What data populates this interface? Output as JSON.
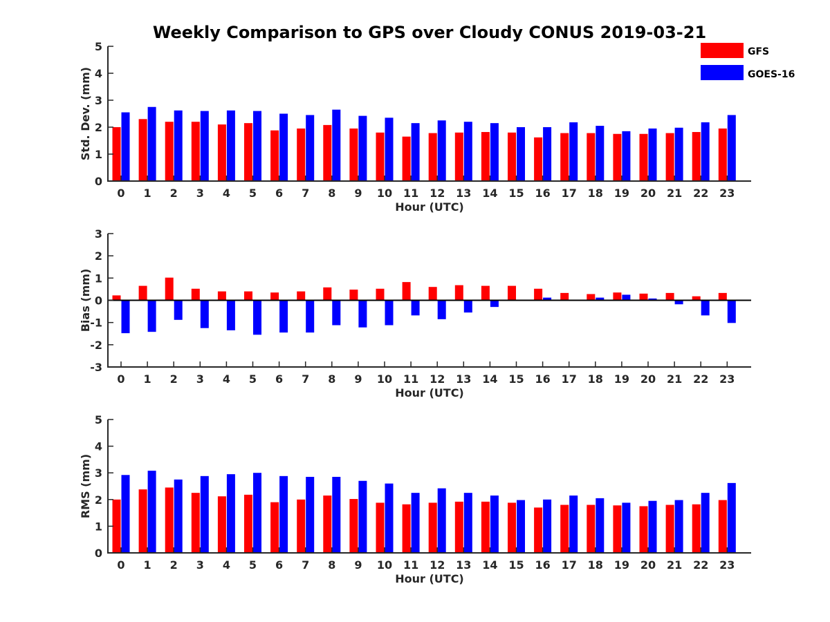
{
  "figure": {
    "title": "Weekly Comparison to GPS over Cloudy CONUS 2019-03-21"
  },
  "legend": {
    "position": "top-right",
    "entries": [
      {
        "name": "GFS",
        "color": "#ff0000"
      },
      {
        "name": "GOES-16",
        "color": "#0000ff"
      }
    ]
  },
  "chart_data": [
    {
      "type": "bar",
      "title": "Weekly Comparison to GPS over Cloudy CONUS 2019-03-21",
      "xlabel": "Hour (UTC)",
      "ylabel": "Std. Dev. (mm)",
      "ylim": [
        0,
        5
      ],
      "yticks": [
        0,
        1,
        2,
        3,
        4,
        5
      ],
      "grid": false,
      "categories": [
        "0",
        "1",
        "2",
        "3",
        "4",
        "5",
        "6",
        "7",
        "8",
        "9",
        "10",
        "11",
        "12",
        "13",
        "14",
        "15",
        "16",
        "17",
        "18",
        "19",
        "20",
        "21",
        "22",
        "23"
      ],
      "series": [
        {
          "name": "GFS",
          "color": "#ff0000",
          "values": [
            2.0,
            2.3,
            2.2,
            2.2,
            2.1,
            2.15,
            1.88,
            1.95,
            2.08,
            1.95,
            1.8,
            1.65,
            1.78,
            1.8,
            1.82,
            1.8,
            1.62,
            1.78,
            1.78,
            1.75,
            1.75,
            1.78,
            1.82,
            1.95
          ]
        },
        {
          "name": "GOES-16",
          "color": "#0000ff",
          "values": [
            2.55,
            2.75,
            2.62,
            2.6,
            2.62,
            2.6,
            2.5,
            2.45,
            2.65,
            2.42,
            2.35,
            2.15,
            2.25,
            2.2,
            2.15,
            2.0,
            2.0,
            2.18,
            2.05,
            1.85,
            1.95,
            1.98,
            2.18,
            2.45
          ]
        }
      ]
    },
    {
      "type": "bar",
      "xlabel": "Hour (UTC)",
      "ylabel": "Bias (mm)",
      "ylim": [
        -3,
        3
      ],
      "yticks": [
        -3,
        -2,
        -1,
        0,
        1,
        2,
        3
      ],
      "grid": false,
      "categories": [
        "0",
        "1",
        "2",
        "3",
        "4",
        "5",
        "6",
        "7",
        "8",
        "9",
        "10",
        "11",
        "12",
        "13",
        "14",
        "15",
        "16",
        "17",
        "18",
        "19",
        "20",
        "21",
        "22",
        "23"
      ],
      "series": [
        {
          "name": "GFS",
          "color": "#ff0000",
          "values": [
            0.22,
            0.65,
            1.02,
            0.52,
            0.4,
            0.4,
            0.35,
            0.4,
            0.58,
            0.48,
            0.52,
            0.82,
            0.6,
            0.68,
            0.65,
            0.65,
            0.52,
            0.33,
            0.28,
            0.35,
            0.3,
            0.33,
            0.18,
            0.33
          ]
        },
        {
          "name": "GOES-16",
          "color": "#0000ff",
          "values": [
            -1.48,
            -1.42,
            -0.88,
            -1.25,
            -1.35,
            -1.55,
            -1.45,
            -1.45,
            -1.12,
            -1.22,
            -1.12,
            -0.68,
            -0.85,
            -0.55,
            -0.3,
            0.03,
            0.12,
            0.0,
            0.12,
            0.25,
            0.08,
            -0.18,
            -0.68,
            -1.02
          ]
        }
      ]
    },
    {
      "type": "bar",
      "xlabel": "Hour (UTC)",
      "ylabel": "RMS (mm)",
      "ylim": [
        0,
        5
      ],
      "yticks": [
        0,
        1,
        2,
        3,
        4,
        5
      ],
      "grid": false,
      "categories": [
        "0",
        "1",
        "2",
        "3",
        "4",
        "5",
        "6",
        "7",
        "8",
        "9",
        "10",
        "11",
        "12",
        "13",
        "14",
        "15",
        "16",
        "17",
        "18",
        "19",
        "20",
        "21",
        "22",
        "23"
      ],
      "series": [
        {
          "name": "GFS",
          "color": "#ff0000",
          "values": [
            2.0,
            2.38,
            2.45,
            2.25,
            2.12,
            2.18,
            1.9,
            2.0,
            2.15,
            2.02,
            1.88,
            1.82,
            1.88,
            1.92,
            1.92,
            1.88,
            1.7,
            1.8,
            1.8,
            1.78,
            1.75,
            1.8,
            1.82,
            1.98
          ]
        },
        {
          "name": "GOES-16",
          "color": "#0000ff",
          "values": [
            2.92,
            3.08,
            2.75,
            2.88,
            2.95,
            3.0,
            2.88,
            2.85,
            2.85,
            2.7,
            2.6,
            2.25,
            2.42,
            2.25,
            2.15,
            1.98,
            2.0,
            2.15,
            2.05,
            1.88,
            1.95,
            1.98,
            2.25,
            2.62
          ]
        }
      ]
    }
  ]
}
